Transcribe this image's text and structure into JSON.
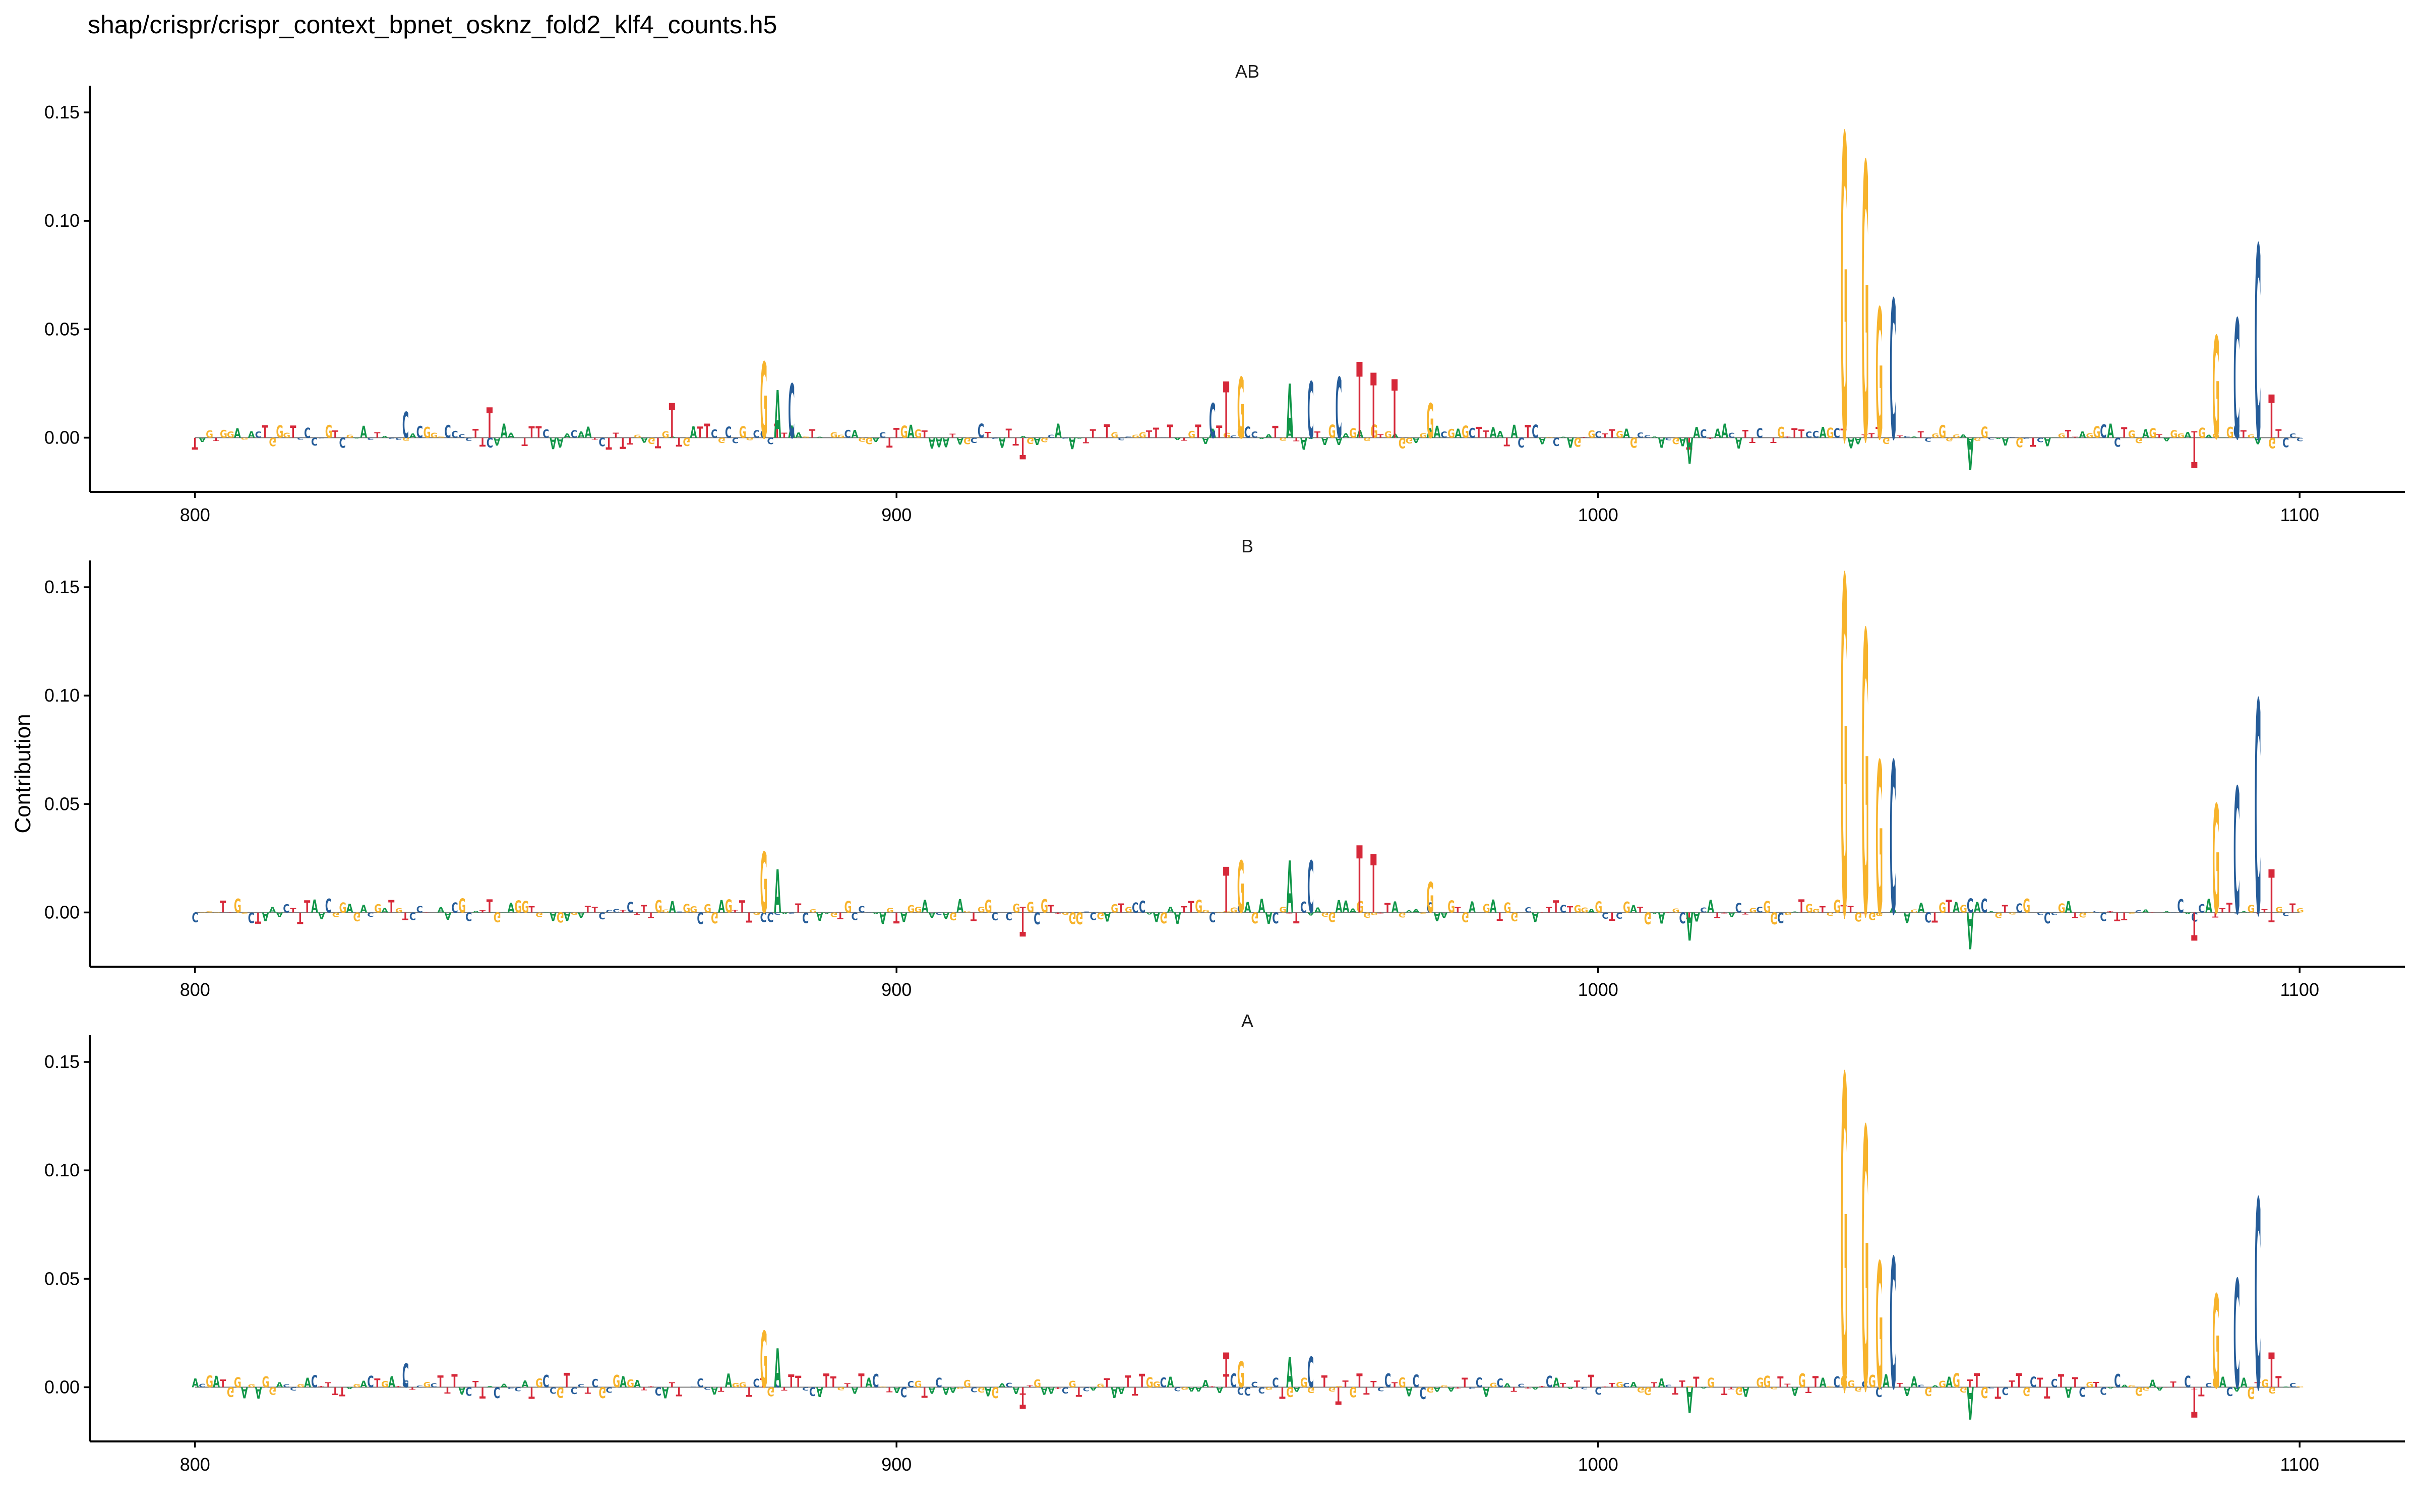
{
  "title": "shap/crispr/crispr_context_bpnet_osknz_fold2_klf4_counts.h5",
  "y_axis_label": "Contribution",
  "colors": {
    "A": "#109648",
    "C": "#255C99",
    "G": "#F7B32B",
    "T": "#D62839"
  },
  "chart_data": {
    "type": "sequence_logo",
    "x_range": [
      785,
      1115
    ],
    "x_ticks": [
      800,
      900,
      1000,
      1100
    ],
    "y_range": [
      -0.025,
      0.16
    ],
    "y_ticks": [
      0.0,
      0.05,
      0.1,
      0.15
    ],
    "y_tick_labels": [
      "0.00",
      "0.05",
      "0.10",
      "0.15"
    ],
    "panels": [
      {
        "name": "AB",
        "peaks": [
          {
            "pos": 830,
            "base": "C",
            "value": 0.012
          },
          {
            "pos": 842,
            "base": "T",
            "value": 0.014
          },
          {
            "pos": 868,
            "base": "T",
            "value": 0.016
          },
          {
            "pos": 881,
            "base": "G",
            "value": 0.035
          },
          {
            "pos": 883,
            "base": "A",
            "value": 0.022
          },
          {
            "pos": 885,
            "base": "C",
            "value": 0.025
          },
          {
            "pos": 945,
            "base": "C",
            "value": 0.016
          },
          {
            "pos": 947,
            "base": "T",
            "value": 0.026
          },
          {
            "pos": 949,
            "base": "G",
            "value": 0.028
          },
          {
            "pos": 956,
            "base": "A",
            "value": 0.025
          },
          {
            "pos": 959,
            "base": "C",
            "value": 0.026
          },
          {
            "pos": 963,
            "base": "C",
            "value": 0.028
          },
          {
            "pos": 966,
            "base": "T",
            "value": 0.035
          },
          {
            "pos": 968,
            "base": "T",
            "value": 0.03
          },
          {
            "pos": 971,
            "base": "T",
            "value": 0.027
          },
          {
            "pos": 976,
            "base": "G",
            "value": 0.016
          },
          {
            "pos": 1035,
            "base": "G",
            "value": 0.14
          },
          {
            "pos": 1038,
            "base": "G",
            "value": 0.127
          },
          {
            "pos": 1040,
            "base": "G",
            "value": 0.06
          },
          {
            "pos": 1042,
            "base": "C",
            "value": 0.064
          },
          {
            "pos": 1088,
            "base": "G",
            "value": 0.047
          },
          {
            "pos": 1091,
            "base": "C",
            "value": 0.055
          },
          {
            "pos": 1094,
            "base": "C",
            "value": 0.089
          },
          {
            "pos": 1096,
            "base": "T",
            "value": 0.02
          },
          {
            "pos": 1013,
            "base": "A",
            "value": -0.012
          },
          {
            "pos": 1053,
            "base": "A",
            "value": -0.015
          },
          {
            "pos": 1085,
            "base": "T",
            "value": -0.014
          },
          {
            "pos": 918,
            "base": "T",
            "value": -0.01
          }
        ]
      },
      {
        "name": "B",
        "peaks": [
          {
            "pos": 842,
            "base": "T",
            "value": 0.006
          },
          {
            "pos": 881,
            "base": "G",
            "value": 0.028
          },
          {
            "pos": 883,
            "base": "A",
            "value": 0.02
          },
          {
            "pos": 947,
            "base": "T",
            "value": 0.021
          },
          {
            "pos": 949,
            "base": "G",
            "value": 0.024
          },
          {
            "pos": 956,
            "base": "A",
            "value": 0.024
          },
          {
            "pos": 959,
            "base": "C",
            "value": 0.024
          },
          {
            "pos": 966,
            "base": "T",
            "value": 0.031
          },
          {
            "pos": 968,
            "base": "T",
            "value": 0.027
          },
          {
            "pos": 976,
            "base": "G",
            "value": 0.014
          },
          {
            "pos": 1035,
            "base": "G",
            "value": 0.155
          },
          {
            "pos": 1038,
            "base": "G",
            "value": 0.13
          },
          {
            "pos": 1040,
            "base": "G",
            "value": 0.07
          },
          {
            "pos": 1042,
            "base": "C",
            "value": 0.07
          },
          {
            "pos": 1088,
            "base": "G",
            "value": 0.05
          },
          {
            "pos": 1091,
            "base": "C",
            "value": 0.058
          },
          {
            "pos": 1094,
            "base": "C",
            "value": 0.098
          },
          {
            "pos": 1096,
            "base": "T",
            "value": 0.02
          },
          {
            "pos": 1013,
            "base": "A",
            "value": -0.013
          },
          {
            "pos": 1053,
            "base": "A",
            "value": -0.017
          },
          {
            "pos": 1085,
            "base": "T",
            "value": -0.013
          },
          {
            "pos": 918,
            "base": "T",
            "value": -0.011
          }
        ]
      },
      {
        "name": "A",
        "peaks": [
          {
            "pos": 830,
            "base": "C",
            "value": 0.011
          },
          {
            "pos": 881,
            "base": "G",
            "value": 0.026
          },
          {
            "pos": 883,
            "base": "A",
            "value": 0.018
          },
          {
            "pos": 947,
            "base": "T",
            "value": 0.016
          },
          {
            "pos": 949,
            "base": "G",
            "value": 0.012
          },
          {
            "pos": 956,
            "base": "A",
            "value": 0.014
          },
          {
            "pos": 959,
            "base": "C",
            "value": 0.014
          },
          {
            "pos": 963,
            "base": "T",
            "value": -0.008
          },
          {
            "pos": 1035,
            "base": "G",
            "value": 0.144
          },
          {
            "pos": 1038,
            "base": "G",
            "value": 0.12
          },
          {
            "pos": 1040,
            "base": "G",
            "value": 0.058
          },
          {
            "pos": 1042,
            "base": "C",
            "value": 0.06
          },
          {
            "pos": 1088,
            "base": "G",
            "value": 0.043
          },
          {
            "pos": 1091,
            "base": "C",
            "value": 0.05
          },
          {
            "pos": 1094,
            "base": "C",
            "value": 0.087
          },
          {
            "pos": 1096,
            "base": "T",
            "value": 0.016
          },
          {
            "pos": 1013,
            "base": "A",
            "value": -0.012
          },
          {
            "pos": 1053,
            "base": "A",
            "value": -0.015
          },
          {
            "pos": 1085,
            "base": "T",
            "value": -0.014
          },
          {
            "pos": 918,
            "base": "T",
            "value": -0.01
          }
        ]
      }
    ]
  }
}
